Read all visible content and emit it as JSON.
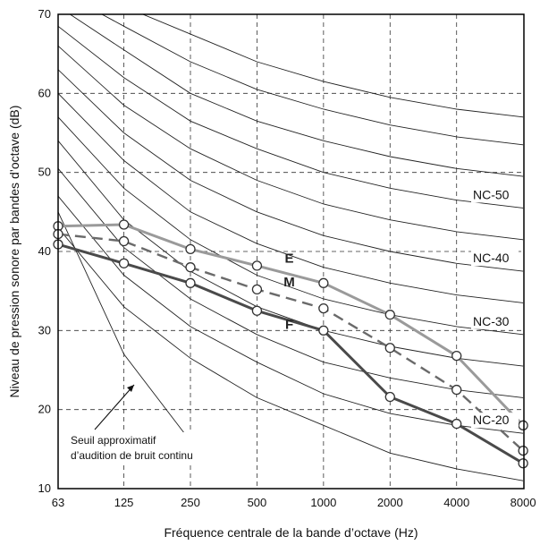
{
  "chart_data": {
    "type": "line",
    "xlabel": "Fréquence centrale de la bande d’octave (Hz)",
    "ylabel": "Niveau de pression sonore par bandes d’octave (dB)",
    "x_ticks": [
      "63",
      "125",
      "250",
      "500",
      "1000",
      "2000",
      "4000",
      "8000"
    ],
    "y_ticks": [
      "10",
      "20",
      "30",
      "40",
      "50",
      "60",
      "70"
    ],
    "ylim": [
      10,
      70
    ],
    "x_scale": "log2 octave bands",
    "grid": "dashed",
    "series": [
      {
        "name": "E",
        "style": "solid-light",
        "color": "#9a9a9a",
        "x": [
          63,
          125,
          250,
          500,
          1000,
          2000,
          4000,
          8000
        ],
        "y": [
          43.2,
          43.4,
          40.3,
          38.2,
          36.0,
          32.0,
          26.8,
          18.0
        ]
      },
      {
        "name": "M",
        "style": "dashed",
        "color": "#6a6a6a",
        "x": [
          63,
          125,
          250,
          500,
          1000,
          2000,
          4000,
          8000
        ],
        "y": [
          42.2,
          41.3,
          38.0,
          35.2,
          32.8,
          27.8,
          22.5,
          14.8
        ]
      },
      {
        "name": "F",
        "style": "solid-dark",
        "color": "#4a4a4a",
        "x": [
          63,
          125,
          250,
          500,
          1000,
          2000,
          4000,
          8000
        ],
        "y": [
          40.9,
          38.5,
          36.0,
          32.5,
          30.0,
          21.6,
          18.2,
          13.2
        ]
      }
    ],
    "nc_curves": [
      {
        "label": "",
        "y": [
          43,
          33,
          26.5,
          21.5,
          18,
          14.5,
          12.5,
          11
        ]
      },
      {
        "label": "NC-20",
        "y": [
          47,
          37,
          30.5,
          26,
          22,
          19.5,
          18,
          17
        ]
      },
      {
        "label": "",
        "y": [
          50.5,
          40.5,
          34,
          29.5,
          26,
          24,
          22.5,
          21.5
        ]
      },
      {
        "label": "",
        "y": [
          54,
          44,
          37.5,
          33,
          30,
          28,
          26.5,
          25.5
        ]
      },
      {
        "label": "NC-30",
        "y": [
          57,
          48,
          41.5,
          37,
          34,
          32,
          30.5,
          29.5
        ]
      },
      {
        "label": "",
        "y": [
          60,
          51.5,
          45,
          41,
          38,
          36,
          34.5,
          33.5
        ]
      },
      {
        "label": "NC-40",
        "y": [
          63,
          55,
          49,
          45,
          42,
          40,
          38.5,
          37.5
        ]
      },
      {
        "label": "",
        "y": [
          66,
          58.5,
          53,
          49,
          46,
          44,
          42.5,
          41.5
        ]
      },
      {
        "label": "NC-50",
        "y": [
          68.5,
          62,
          56.5,
          53,
          50,
          48,
          46.5,
          45.5
        ]
      },
      {
        "label": "",
        "y": [
          71,
          65.5,
          60,
          56.5,
          54,
          52,
          50.5,
          49.5
        ]
      },
      {
        "label": "",
        "y": [
          73,
          68.5,
          64,
          60.5,
          58,
          56,
          54.5,
          53.5
        ]
      },
      {
        "label": "",
        "y": [
          75,
          71,
          67.5,
          64,
          61.5,
          59.5,
          58,
          57
        ]
      }
    ],
    "hearing_threshold": {
      "x": [
        63,
        125,
        250
      ],
      "y": [
        45,
        27,
        16
      ],
      "label_lines": [
        "Seuil approximatif",
        "d’audition de bruit continu"
      ]
    }
  }
}
